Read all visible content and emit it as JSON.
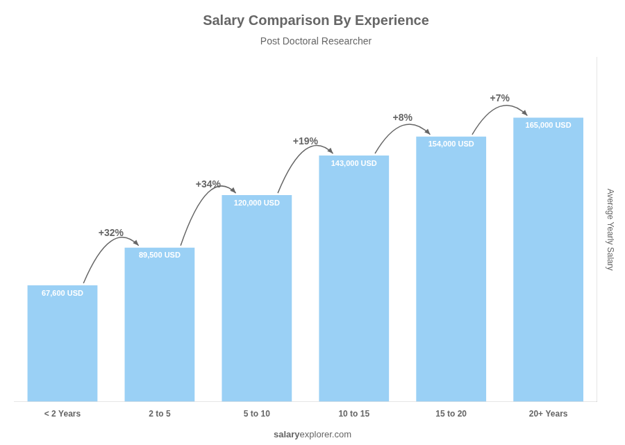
{
  "chart_data": {
    "type": "bar",
    "title": "Salary Comparison By Experience",
    "subtitle": "Post Doctoral Researcher",
    "categories": [
      "< 2 Years",
      "2 to 5",
      "5 to 10",
      "10 to 15",
      "15 to 20",
      "20+ Years"
    ],
    "values": [
      67600,
      89500,
      120000,
      143000,
      154000,
      165000
    ],
    "value_labels": [
      "67,600 USD",
      "89,500 USD",
      "120,000 USD",
      "143,000 USD",
      "154,000 USD",
      "165,000 USD"
    ],
    "data_labels": true,
    "ylabel": "Average Yearly Salary",
    "annotations": [
      "+32%",
      "+34%",
      "+19%",
      "+8%",
      "+7%"
    ],
    "footer": [
      "salary",
      "explorer.com"
    ],
    "ylim": [
      0,
      200000
    ],
    "grid": false,
    "tick_labels": "x"
  }
}
